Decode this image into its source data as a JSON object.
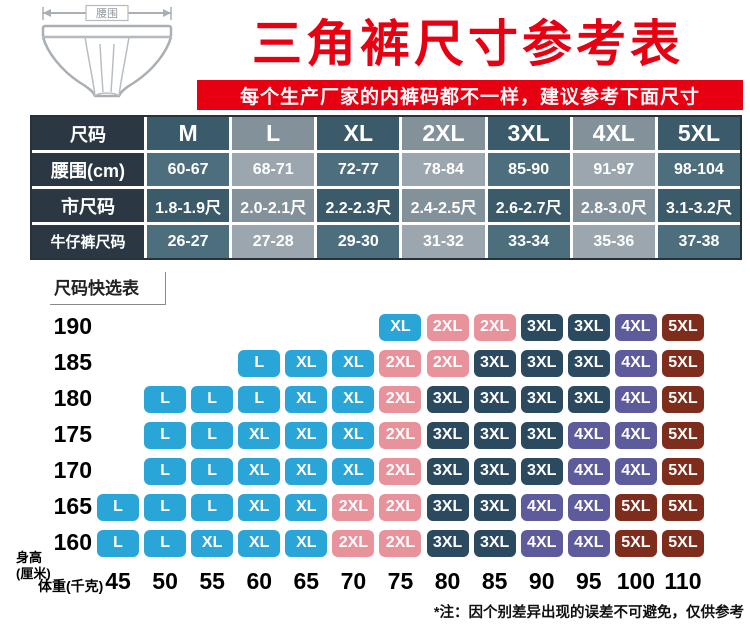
{
  "header": {
    "title": "三角裤尺寸参考表",
    "subtitle": "每个生产厂家的内裤码都不一样，建议参考下面尺寸",
    "waist_arrow_label": "腰围"
  },
  "size_table": {
    "row_labels": [
      "尺码",
      "腰围(cm)",
      "市尺码",
      "牛仔裤尺码"
    ],
    "rows": [
      [
        "M",
        "L",
        "XL",
        "2XL",
        "3XL",
        "4XL",
        "5XL"
      ],
      [
        "60-67",
        "68-71",
        "72-77",
        "78-84",
        "85-90",
        "91-97",
        "98-104"
      ],
      [
        "1.8-1.9尺",
        "2.0-2.1尺",
        "2.2-2.3尺",
        "2.4-2.5尺",
        "2.6-2.7尺",
        "2.8-3.0尺",
        "3.1-3.2尺"
      ],
      [
        "26-27",
        "27-28",
        "29-30",
        "31-32",
        "33-34",
        "35-36",
        "37-38"
      ]
    ]
  },
  "chart_data": {
    "type": "heatmap",
    "title": "尺码快选表",
    "xlabel": "体重(千克)",
    "ylabel": "身高(厘米)",
    "ylabel_lines": [
      "身高",
      "(厘米)"
    ],
    "x": [
      "45",
      "50",
      "55",
      "60",
      "65",
      "70",
      "75",
      "80",
      "85",
      "90",
      "95",
      "100",
      "110"
    ],
    "y": [
      "190",
      "185",
      "180",
      "175",
      "170",
      "165",
      "160"
    ],
    "series": [
      {
        "height": "190",
        "values": [
          null,
          null,
          null,
          null,
          null,
          null,
          "XL",
          "2XL",
          "2XL",
          "3XL",
          "3XL",
          "4XL",
          "5XL"
        ]
      },
      {
        "height": "185",
        "values": [
          null,
          null,
          null,
          "L",
          "XL",
          "XL",
          "2XL",
          "2XL",
          "3XL",
          "3XL",
          "3XL",
          "4XL",
          "5XL"
        ]
      },
      {
        "height": "180",
        "values": [
          null,
          "L",
          "L",
          "L",
          "XL",
          "XL",
          "2XL",
          "3XL",
          "3XL",
          "3XL",
          "3XL",
          "4XL",
          "5XL"
        ]
      },
      {
        "height": "175",
        "values": [
          null,
          "L",
          "L",
          "XL",
          "XL",
          "XL",
          "2XL",
          "3XL",
          "3XL",
          "3XL",
          "4XL",
          "4XL",
          "5XL"
        ]
      },
      {
        "height": "170",
        "values": [
          null,
          "L",
          "L",
          "XL",
          "XL",
          "XL",
          "2XL",
          "3XL",
          "3XL",
          "3XL",
          "4XL",
          "4XL",
          "5XL"
        ]
      },
      {
        "height": "165",
        "values": [
          "L",
          "L",
          "L",
          "XL",
          "XL",
          "2XL",
          "2XL",
          "3XL",
          "3XL",
          "4XL",
          "4XL",
          "5XL",
          "5XL"
        ]
      },
      {
        "height": "160",
        "values": [
          "L",
          "L",
          "XL",
          "XL",
          "XL",
          "2XL",
          "2XL",
          "3XL",
          "3XL",
          "4XL",
          "4XL",
          "5XL",
          "5XL"
        ]
      }
    ],
    "size_colors": {
      "L": "#2aa5d8",
      "XL": "#2aa5d8",
      "2XL": "#e8929c",
      "3XL": "#2b4a60",
      "4XL": "#5d5b9c",
      "5XL": "#7e2c1b"
    }
  },
  "footnote": "*注：因个别差异出现的误差不可避免，仅供参考",
  "colors": {
    "accent_red": "#e60012",
    "table_label_bg": "#2b3843",
    "table_dark_odd": "#3b5a6a",
    "table_light_odd": "#83919b",
    "table_dark_even": "#4d6e7d",
    "table_light_even": "#9ba6ae"
  }
}
